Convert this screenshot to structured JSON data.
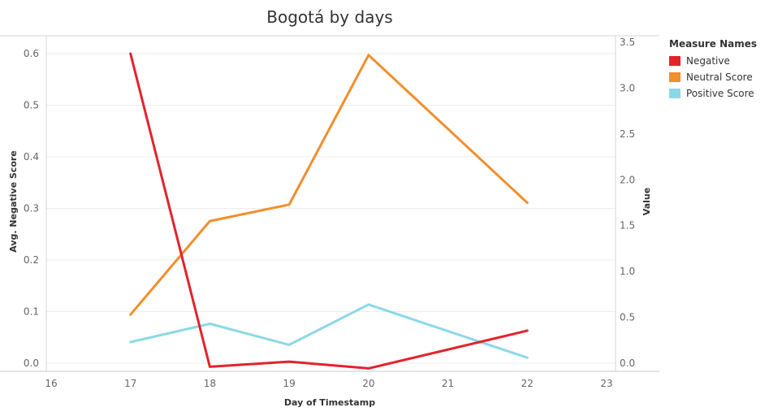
{
  "chart_data": {
    "type": "line",
    "title": "Bogotá by days",
    "xlabel": "Day of Timestamp",
    "ylabel_left": "Avg. Negative Score",
    "ylabel_right": "Value",
    "x_ticks": [
      "16",
      "17",
      "18",
      "19",
      "20",
      "21",
      "22",
      "23"
    ],
    "xlim": [
      16,
      23
    ],
    "ylim_left": [
      0,
      0.62
    ],
    "yticks_left": [
      "0.0",
      "0.1",
      "0.2",
      "0.3",
      "0.4",
      "0.5",
      "0.6"
    ],
    "ylim_right": [
      0,
      3.5
    ],
    "yticks_right": [
      "0.0",
      "0.5",
      "1.0",
      "1.5",
      "2.0",
      "2.5",
      "3.0",
      "3.5"
    ],
    "grid": true,
    "legend_position": "right",
    "legend_title": "Measure Names",
    "series": [
      {
        "name": "Negative",
        "axis": "left",
        "color": "#e3232c",
        "x": [
          17,
          18,
          19,
          20,
          22
        ],
        "values": [
          0.6,
          -0.007,
          0.003,
          -0.01,
          0.063
        ]
      },
      {
        "name": "Neutral Score",
        "axis": "right",
        "color": "#f28e2b",
        "x": [
          17,
          18,
          19,
          20,
          22
        ],
        "values": [
          0.53,
          1.55,
          1.73,
          3.36,
          1.75
        ]
      },
      {
        "name": "Positive Score",
        "axis": "right",
        "color": "#8cd8e6",
        "x": [
          17,
          18,
          19,
          20,
          22
        ],
        "values": [
          0.23,
          0.43,
          0.2,
          0.64,
          0.06
        ]
      }
    ]
  }
}
